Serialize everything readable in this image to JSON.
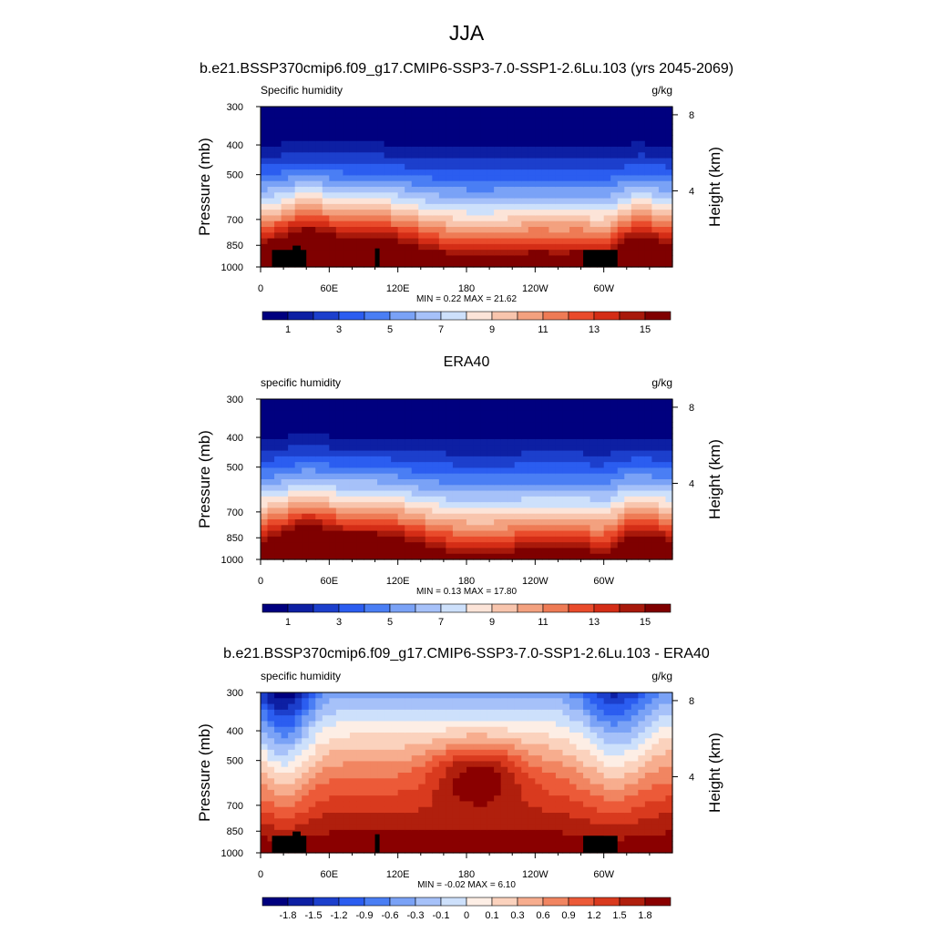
{
  "figure": {
    "title": "JJA",
    "colors": {
      "humidity_scale": [
        "#00007f",
        "#0d1fa3",
        "#1c3fcc",
        "#2b5df0",
        "#4a7ef4",
        "#7aa2f6",
        "#a6c1f9",
        "#cde0fb",
        "#fce4d8",
        "#f8c5ad",
        "#f3a17f",
        "#ee7b55",
        "#e94b2b",
        "#d42d16",
        "#a8190b",
        "#7f0000"
      ],
      "difference_scale": [
        "#00007f",
        "#0d1fa3",
        "#1c3fcc",
        "#2b5df0",
        "#4a7ef4",
        "#7aa2f6",
        "#a6c1f9",
        "#cde0fb",
        "#fdeee5",
        "#fbd2bd",
        "#f7ad8e",
        "#f18561",
        "#ec5a38",
        "#d93a1e",
        "#b01f0d",
        "#8a0000"
      ]
    }
  },
  "chart_data": [
    {
      "type": "heatmap",
      "title": "b.e21.BSSP370cmip6.f09_g17.CMIP6-SSP3-7.0-SSP1-2.6Lu.103 (yrs 2045-2069)",
      "left_label": "Specific humidity",
      "right_label": "g/kg",
      "ylabel": "Pressure (mb)",
      "y2label": "Height (km)",
      "xticks": [
        "0",
        "60E",
        "120E",
        "180",
        "120W",
        "60W"
      ],
      "xlim": [
        0,
        360
      ],
      "yticks": [
        "300",
        "400",
        "500",
        "700",
        "850",
        "1000"
      ],
      "ylim": [
        1000,
        300
      ],
      "y2ticks": [
        "4",
        "8"
      ],
      "stats": "MIN =   0.22  MAX =  21.62",
      "colorbar": {
        "levels": 16,
        "labels": [
          "1",
          "3",
          "5",
          "7",
          "9",
          "11",
          "13",
          "15"
        ]
      },
      "topography": true
    },
    {
      "type": "heatmap",
      "title": "ERA40",
      "left_label": "specific humidity",
      "right_label": "g/kg",
      "ylabel": "Pressure (mb)",
      "y2label": "Height (km)",
      "xticks": [
        "0",
        "60E",
        "120E",
        "180",
        "120W",
        "60W"
      ],
      "xlim": [
        0,
        360
      ],
      "yticks": [
        "300",
        "400",
        "500",
        "700",
        "850",
        "1000"
      ],
      "ylim": [
        1000,
        300
      ],
      "y2ticks": [
        "4",
        "8"
      ],
      "stats": "MIN =   0.13  MAX =  17.80",
      "colorbar": {
        "levels": 16,
        "labels": [
          "1",
          "3",
          "5",
          "7",
          "9",
          "11",
          "13",
          "15"
        ]
      },
      "topography": false
    },
    {
      "type": "heatmap",
      "title": "b.e21.BSSP370cmip6.f09_g17.CMIP6-SSP3-7.0-SSP1-2.6Lu.103 - ERA40",
      "left_label": "specific humidity",
      "right_label": "g/kg",
      "ylabel": "Pressure (mb)",
      "y2label": "Height (km)",
      "xticks": [
        "0",
        "60E",
        "120E",
        "180",
        "120W",
        "60W"
      ],
      "xlim": [
        0,
        360
      ],
      "yticks": [
        "300",
        "400",
        "500",
        "700",
        "850",
        "1000"
      ],
      "ylim": [
        1000,
        300
      ],
      "y2ticks": [
        "4",
        "8"
      ],
      "stats": "MIN =  -0.02  MAX =   6.10",
      "colorbar": {
        "levels": 16,
        "labels": [
          "-1.8",
          "-1.5",
          "-1.2",
          "-0.9",
          "-0.6",
          "-0.3",
          "-0.1",
          "0",
          "0.1",
          "0.3",
          "0.6",
          "0.9",
          "1.2",
          "1.5",
          "1.8"
        ]
      },
      "topography": true
    }
  ]
}
